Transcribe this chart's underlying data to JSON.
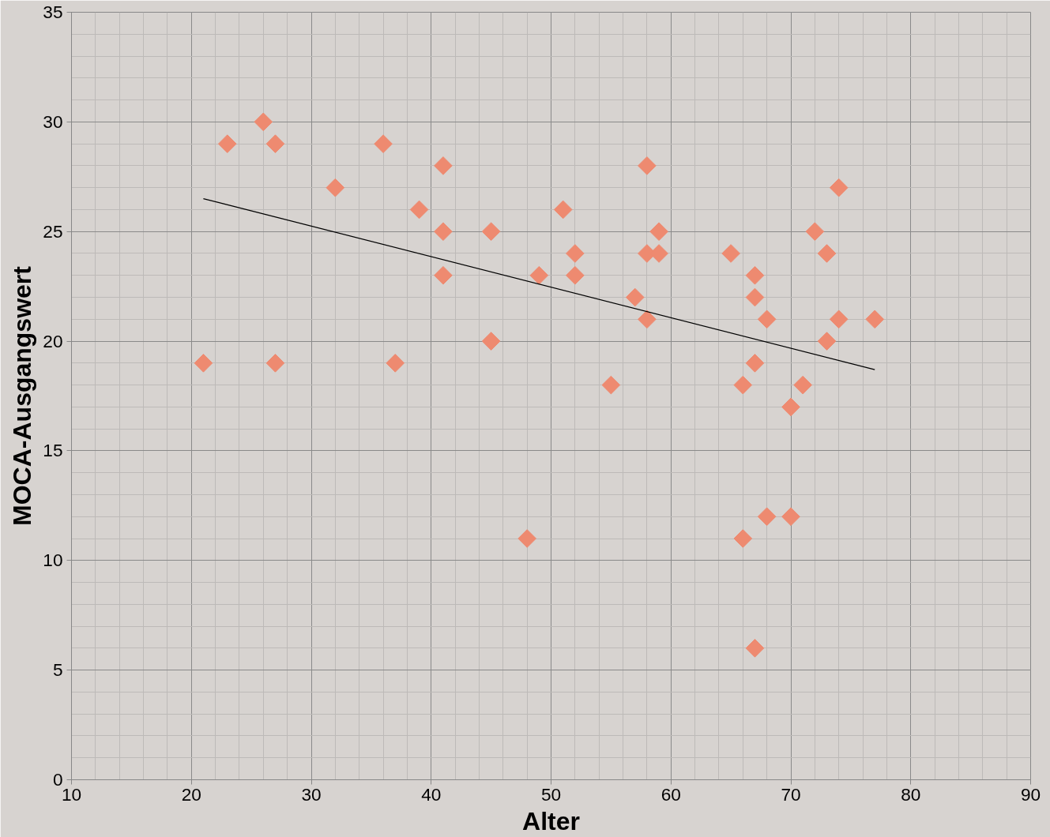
{
  "chart_data": {
    "type": "scatter",
    "xlabel": "Alter",
    "ylabel": "MOCA-Ausgangswert",
    "xlim": [
      10,
      90
    ],
    "ylim": [
      0,
      35
    ],
    "xticks": [
      10,
      20,
      30,
      40,
      50,
      60,
      70,
      80,
      90
    ],
    "yticks": [
      0,
      5,
      10,
      15,
      20,
      25,
      30,
      35
    ],
    "grid": true,
    "marker": "diamond",
    "series": [
      {
        "color": "#ee8a70",
        "x": [
          21,
          23,
          26,
          27,
          27,
          32,
          36,
          37,
          39,
          41,
          41,
          41,
          45,
          45,
          48,
          49,
          51,
          52,
          52,
          55,
          57,
          58,
          58,
          58,
          59,
          59,
          65,
          66,
          66,
          67,
          67,
          67,
          67,
          68,
          68,
          70,
          70,
          71,
          72,
          73,
          73,
          74,
          74,
          77
        ],
        "values": [
          19,
          29,
          30,
          29,
          19,
          27,
          29,
          19,
          26,
          28,
          25,
          23,
          25,
          20,
          11,
          23,
          26,
          24,
          23,
          18,
          22,
          28,
          24,
          21,
          25,
          24,
          24,
          18,
          11,
          23,
          22,
          19,
          6,
          21,
          12,
          17,
          12,
          18,
          25,
          24,
          20,
          27,
          21,
          21
        ]
      },
      {
        "type": "line",
        "marker": "none",
        "color": "#000000",
        "x": [
          21,
          77
        ],
        "values": [
          26.5,
          18.7
        ]
      }
    ]
  }
}
